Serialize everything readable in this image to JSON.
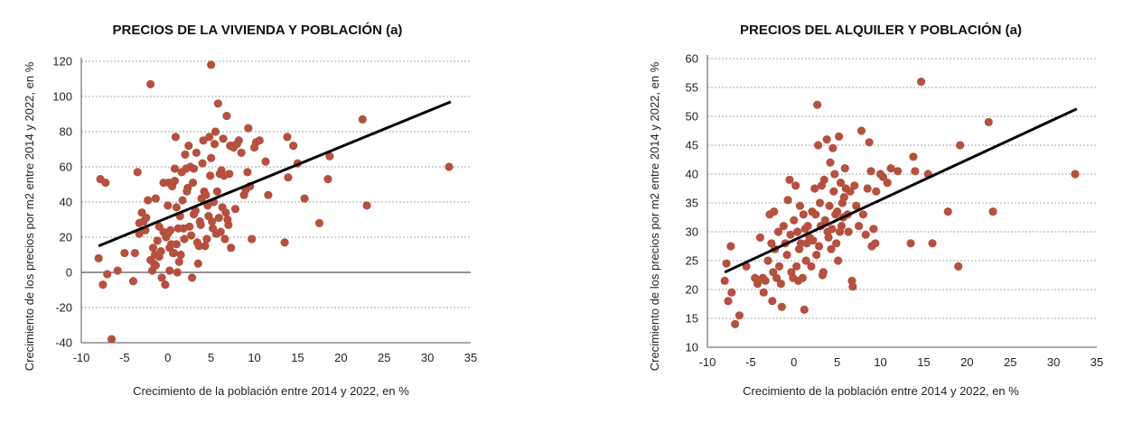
{
  "accent_color": "#b5513f",
  "chart_data": [
    {
      "type": "scatter",
      "title": "PRECIOS DE LA VIVIENDA Y POBLACIÓN (a)",
      "xlabel": "Crecimiento de la población entre 2014 y 2022, en %",
      "ylabel": "Crecimiento de los precios por m2 entre 2014 y 2022, en %",
      "xlim": [
        -10,
        35
      ],
      "ylim": [
        -40,
        120
      ],
      "xticks": [
        -10,
        -5,
        0,
        5,
        10,
        15,
        20,
        25,
        30,
        35
      ],
      "yticks": [
        -40,
        -20,
        0,
        20,
        40,
        60,
        80,
        100,
        120
      ],
      "xtick_labels": [
        "-10",
        "-5",
        "0",
        "5",
        "10",
        "15",
        "20",
        "25",
        "30",
        "35"
      ],
      "ytick_labels": [
        "-40",
        "-20",
        "0",
        "20",
        "40",
        "60",
        "80",
        "100",
        "120"
      ],
      "grid": true,
      "trendline": [
        [
          -8,
          15
        ],
        [
          32.7,
          97
        ]
      ],
      "points": [
        [
          -8,
          8
        ],
        [
          -7.8,
          53
        ],
        [
          -7.5,
          -7
        ],
        [
          -7.2,
          51
        ],
        [
          -7,
          -1
        ],
        [
          -6.5,
          -38
        ],
        [
          -5.8,
          1
        ],
        [
          -5,
          11
        ],
        [
          -4,
          -5
        ],
        [
          -3.8,
          11
        ],
        [
          -3.5,
          57
        ],
        [
          -3.3,
          22
        ],
        [
          -3.3,
          28
        ],
        [
          -3,
          34
        ],
        [
          -2.8,
          29
        ],
        [
          -2.6,
          24
        ],
        [
          -2.5,
          31
        ],
        [
          -2.3,
          41
        ],
        [
          -2,
          107
        ],
        [
          -2,
          7
        ],
        [
          -1.8,
          1
        ],
        [
          -1.7,
          14
        ],
        [
          -1.6,
          5
        ],
        [
          -1.5,
          10
        ],
        [
          -1.4,
          4
        ],
        [
          -1.4,
          42
        ],
        [
          -1.2,
          18
        ],
        [
          -1,
          9
        ],
        [
          -1,
          26
        ],
        [
          -0.8,
          12
        ],
        [
          -0.7,
          -3
        ],
        [
          -0.5,
          23
        ],
        [
          -0.5,
          51
        ],
        [
          -0.3,
          -7
        ],
        [
          -0.2,
          20
        ],
        [
          0,
          22
        ],
        [
          0,
          38
        ],
        [
          0.1,
          51
        ],
        [
          0.2,
          14
        ],
        [
          0.2,
          1
        ],
        [
          0.3,
          24
        ],
        [
          0.4,
          16
        ],
        [
          0.5,
          49
        ],
        [
          0.6,
          11
        ],
        [
          0.7,
          11
        ],
        [
          0.8,
          52
        ],
        [
          0.8,
          59
        ],
        [
          0.9,
          77
        ],
        [
          1,
          16
        ],
        [
          1,
          37
        ],
        [
          1.1,
          0
        ],
        [
          1.2,
          25
        ],
        [
          1.3,
          6
        ],
        [
          1.4,
          32
        ],
        [
          1.5,
          10
        ],
        [
          1.6,
          57
        ],
        [
          1.7,
          41
        ],
        [
          1.8,
          25
        ],
        [
          1.9,
          19
        ],
        [
          2,
          67
        ],
        [
          2.1,
          59
        ],
        [
          2.2,
          46
        ],
        [
          2.3,
          48
        ],
        [
          2.4,
          72
        ],
        [
          2.5,
          26
        ],
        [
          2.6,
          60
        ],
        [
          2.7,
          21
        ],
        [
          2.8,
          -3
        ],
        [
          2.9,
          51
        ],
        [
          3,
          33
        ],
        [
          3,
          59
        ],
        [
          3.2,
          35
        ],
        [
          3.3,
          68
        ],
        [
          3.4,
          17
        ],
        [
          3.5,
          5
        ],
        [
          3.6,
          15
        ],
        [
          3.7,
          29
        ],
        [
          3.8,
          27
        ],
        [
          3.9,
          42
        ],
        [
          4,
          62
        ],
        [
          4.1,
          75
        ],
        [
          4.2,
          46
        ],
        [
          4.3,
          15
        ],
        [
          4.4,
          44
        ],
        [
          4.5,
          19
        ],
        [
          4.6,
          38
        ],
        [
          4.7,
          32
        ],
        [
          4.8,
          77
        ],
        [
          4.9,
          55
        ],
        [
          5,
          118
        ],
        [
          5,
          65
        ],
        [
          5.1,
          29
        ],
        [
          5.2,
          25
        ],
        [
          5.3,
          40
        ],
        [
          5.4,
          73
        ],
        [
          5.5,
          80
        ],
        [
          5.6,
          22
        ],
        [
          5.7,
          46
        ],
        [
          5.8,
          96
        ],
        [
          5.9,
          31
        ],
        [
          6,
          56
        ],
        [
          6.1,
          23
        ],
        [
          6.2,
          58
        ],
        [
          6.3,
          37
        ],
        [
          6.4,
          76
        ],
        [
          6.5,
          55
        ],
        [
          6.6,
          19
        ],
        [
          6.7,
          34
        ],
        [
          6.8,
          89
        ],
        [
          6.9,
          30
        ],
        [
          7,
          27
        ],
        [
          7.1,
          56
        ],
        [
          7.2,
          72
        ],
        [
          7.3,
          14
        ],
        [
          7.4,
          72
        ],
        [
          7.6,
          71
        ],
        [
          7.8,
          36
        ],
        [
          8,
          73
        ],
        [
          8.2,
          75
        ],
        [
          8.5,
          68
        ],
        [
          8.8,
          44
        ],
        [
          9,
          47
        ],
        [
          9.2,
          57
        ],
        [
          9.3,
          82
        ],
        [
          9.5,
          49
        ],
        [
          9.7,
          19
        ],
        [
          10,
          71
        ],
        [
          10.2,
          74
        ],
        [
          10.6,
          75
        ],
        [
          11.3,
          63
        ],
        [
          11.6,
          44
        ],
        [
          13.5,
          17
        ],
        [
          13.8,
          77
        ],
        [
          13.9,
          54
        ],
        [
          14.5,
          72
        ],
        [
          15,
          62
        ],
        [
          15.8,
          42
        ],
        [
          17.5,
          28
        ],
        [
          18.5,
          53
        ],
        [
          18.7,
          66
        ],
        [
          22.5,
          87
        ],
        [
          23,
          38
        ],
        [
          32.5,
          60
        ]
      ]
    },
    {
      "type": "scatter",
      "title": "PRECIOS DEL ALQUILER Y POBLACIÓN (a)",
      "xlabel": "Crecimiento de la población entre 2014 y 2022, en %",
      "ylabel": "Crecimiento de los precios por m2 entre 2014 y 2022, en %",
      "xlim": [
        -10,
        35
      ],
      "ylim": [
        10,
        60
      ],
      "xticks": [
        -10,
        -5,
        0,
        5,
        10,
        15,
        20,
        25,
        30,
        35
      ],
      "yticks": [
        10,
        15,
        20,
        25,
        30,
        35,
        40,
        45,
        50,
        55,
        60
      ],
      "xtick_labels": [
        "-10",
        "-5",
        "0",
        "5",
        "10",
        "15",
        "20",
        "25",
        "30",
        "35"
      ],
      "ytick_labels": [
        "10",
        "15",
        "20",
        "25",
        "30",
        "35",
        "40",
        "45",
        "50",
        "55",
        "60"
      ],
      "grid": true,
      "trendline": [
        [
          -8,
          23
        ],
        [
          32.7,
          51.3
        ]
      ],
      "points": [
        [
          -8,
          21.5
        ],
        [
          -7.8,
          24.5
        ],
        [
          -7.6,
          18
        ],
        [
          -7.3,
          27.5
        ],
        [
          -7.2,
          19.5
        ],
        [
          -6.8,
          14
        ],
        [
          -6.3,
          15.5
        ],
        [
          -5.5,
          24
        ],
        [
          -4.5,
          22
        ],
        [
          -4.2,
          21
        ],
        [
          -3.9,
          29
        ],
        [
          -3.6,
          22
        ],
        [
          -3.5,
          19.5
        ],
        [
          -3.3,
          21.5
        ],
        [
          -3,
          25
        ],
        [
          -2.8,
          33
        ],
        [
          -2.6,
          28
        ],
        [
          -2.5,
          18
        ],
        [
          -2.4,
          23
        ],
        [
          -2.3,
          33.5
        ],
        [
          -2.2,
          27
        ],
        [
          -2,
          22
        ],
        [
          -1.8,
          30
        ],
        [
          -1.7,
          24
        ],
        [
          -1.5,
          21
        ],
        [
          -1.4,
          17
        ],
        [
          -1.2,
          31
        ],
        [
          -1,
          28
        ],
        [
          -0.8,
          26
        ],
        [
          -0.7,
          35.5
        ],
        [
          -0.5,
          39
        ],
        [
          -0.4,
          29.5
        ],
        [
          -0.3,
          23
        ],
        [
          -0.1,
          22
        ],
        [
          0,
          32
        ],
        [
          0.2,
          38
        ],
        [
          0.3,
          24
        ],
        [
          0.4,
          30
        ],
        [
          0.5,
          21.5
        ],
        [
          0.6,
          27
        ],
        [
          0.7,
          34.5
        ],
        [
          0.8,
          28
        ],
        [
          1,
          22
        ],
        [
          1.1,
          33
        ],
        [
          1.2,
          16.5
        ],
        [
          1.3,
          30.5
        ],
        [
          1.4,
          25
        ],
        [
          1.5,
          28
        ],
        [
          1.6,
          31
        ],
        [
          1.8,
          29
        ],
        [
          2,
          24
        ],
        [
          2.1,
          33.5
        ],
        [
          2.2,
          28.5
        ],
        [
          2.4,
          37.5
        ],
        [
          2.5,
          33
        ],
        [
          2.6,
          26
        ],
        [
          2.7,
          52
        ],
        [
          2.8,
          45
        ],
        [
          2.9,
          27.5
        ],
        [
          3,
          35
        ],
        [
          3.1,
          31
        ],
        [
          3.2,
          38
        ],
        [
          3.3,
          22.5
        ],
        [
          3.4,
          23
        ],
        [
          3.5,
          39
        ],
        [
          3.6,
          32
        ],
        [
          3.8,
          46
        ],
        [
          3.9,
          30
        ],
        [
          4,
          29
        ],
        [
          4.1,
          34.5
        ],
        [
          4.2,
          42
        ],
        [
          4.3,
          27
        ],
        [
          4.4,
          30.5
        ],
        [
          4.5,
          44.5
        ],
        [
          4.6,
          37
        ],
        [
          4.7,
          40
        ],
        [
          4.8,
          33
        ],
        [
          4.9,
          28
        ],
        [
          5,
          33.5
        ],
        [
          5.1,
          25
        ],
        [
          5.2,
          46.5
        ],
        [
          5.3,
          30
        ],
        [
          5.4,
          38.5
        ],
        [
          5.5,
          31
        ],
        [
          5.6,
          35
        ],
        [
          5.7,
          32.5
        ],
        [
          5.8,
          36
        ],
        [
          5.9,
          41
        ],
        [
          6,
          37.5
        ],
        [
          6.2,
          33
        ],
        [
          6.3,
          30
        ],
        [
          6.5,
          37
        ],
        [
          6.7,
          21.5
        ],
        [
          6.8,
          20.5
        ],
        [
          7,
          38
        ],
        [
          7.2,
          34.5
        ],
        [
          7.5,
          31
        ],
        [
          7.8,
          47.5
        ],
        [
          8,
          33
        ],
        [
          8.3,
          29.5
        ],
        [
          8.5,
          37.5
        ],
        [
          8.7,
          45.5
        ],
        [
          8.9,
          40.5
        ],
        [
          9,
          27.5
        ],
        [
          9.2,
          30.5
        ],
        [
          9.4,
          28
        ],
        [
          9.5,
          37
        ],
        [
          10,
          40
        ],
        [
          10.3,
          39.5
        ],
        [
          10.8,
          38.5
        ],
        [
          11.2,
          41
        ],
        [
          12,
          40.5
        ],
        [
          13.5,
          28
        ],
        [
          13.8,
          43
        ],
        [
          14,
          40.5
        ],
        [
          14.7,
          56
        ],
        [
          15.5,
          40
        ],
        [
          16,
          28
        ],
        [
          17.8,
          33.5
        ],
        [
          19,
          24
        ],
        [
          19.2,
          45
        ],
        [
          22.5,
          49
        ],
        [
          23,
          33.5
        ],
        [
          32.5,
          40
        ]
      ]
    }
  ]
}
